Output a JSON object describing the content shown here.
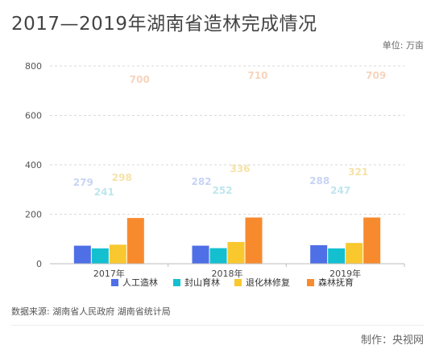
{
  "title": "2017—2019年湖南省造林完成情况",
  "unit_label": "单位: 万亩",
  "source_label": "数据来源:  湖南省人民政府 湖南省统计局",
  "credit_label": "制作：央视网",
  "chart_data": {
    "type": "bar",
    "categories": [
      "2017年",
      "2018年",
      "2019年"
    ],
    "series": [
      {
        "name": "人工造林",
        "values": [
          73,
          73,
          75
        ],
        "color": "#4e6fe6",
        "label_color": "#c8d4f4"
      },
      {
        "name": "封山育林",
        "values": [
          62,
          63,
          62
        ],
        "color": "#14bfd0",
        "label_color": "#bfe6ef"
      },
      {
        "name": "退化林修复",
        "values": [
          77,
          88,
          84
        ],
        "color": "#f8c82e",
        "label_color": "#f6e2a8"
      },
      {
        "name": "森林抚育",
        "values": [
          185,
          187,
          187
        ],
        "color": "#f88a2e",
        "label_color": "#f6d4bc"
      }
    ],
    "watermark_labels": [
      [
        "279",
        "241",
        "298",
        "700"
      ],
      [
        "282",
        "252",
        "336",
        "710"
      ],
      [
        "288",
        "247",
        "321",
        "709"
      ]
    ],
    "y_ticks": [
      0,
      200,
      400,
      600,
      800
    ],
    "ylim": [
      0,
      800
    ],
    "grid": true,
    "legend_position": "bottom"
  }
}
